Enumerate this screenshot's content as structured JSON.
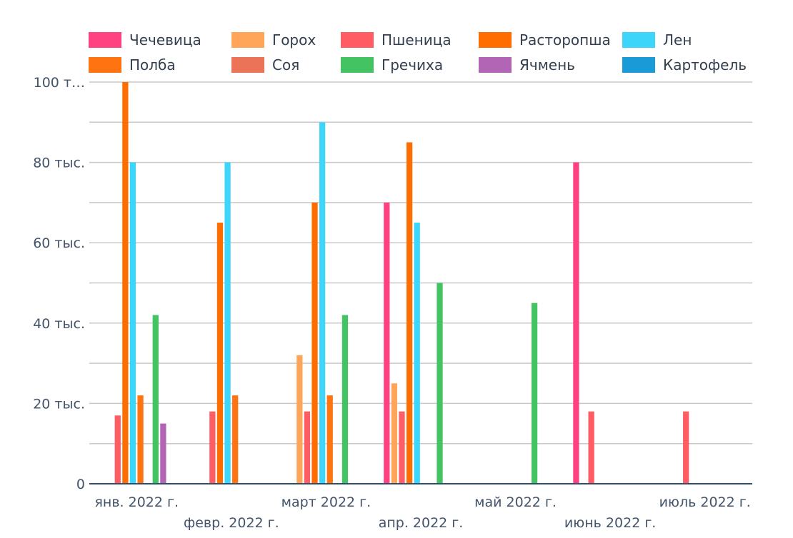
{
  "chart_data": {
    "type": "bar",
    "title": "",
    "xlabel": "",
    "ylabel": "",
    "ylim": [
      0,
      100000
    ],
    "grid": true,
    "legend_position": "top",
    "y_ticks": [
      {
        "value": 0,
        "label": "0"
      },
      {
        "value": 20000,
        "label": "20 тыс."
      },
      {
        "value": 40000,
        "label": "40 тыс."
      },
      {
        "value": 60000,
        "label": "60 тыс."
      },
      {
        "value": 80000,
        "label": "80 тыс."
      },
      {
        "value": 100000,
        "label": "100 т…"
      }
    ],
    "categories": [
      "янв. 2022 г.",
      "февр. 2022 г.",
      "март 2022 г.",
      "апр. 2022 г.",
      "май 2022 г.",
      "июнь 2022 г.",
      "июль 2022 г."
    ],
    "series": [
      {
        "name": "Чечевица",
        "color": "#ff4081",
        "values": [
          null,
          null,
          null,
          70000,
          null,
          80000,
          null
        ]
      },
      {
        "name": "Горох",
        "color": "#ffa55a",
        "values": [
          null,
          null,
          32000,
          25000,
          null,
          null,
          null
        ]
      },
      {
        "name": "Пшеница",
        "color": "#ff5c63",
        "values": [
          17000,
          18000,
          18000,
          18000,
          null,
          18000,
          18000
        ]
      },
      {
        "name": "Расторопша",
        "color": "#ff6d00",
        "values": [
          100000,
          65000,
          70000,
          85000,
          null,
          null,
          null
        ]
      },
      {
        "name": "Лен",
        "color": "#3dd6fa",
        "values": [
          80000,
          80000,
          90000,
          65000,
          null,
          null,
          null
        ]
      },
      {
        "name": "Полба",
        "color": "#ff7411",
        "values": [
          22000,
          22000,
          22000,
          null,
          null,
          null,
          null
        ]
      },
      {
        "name": "Соя",
        "color": "#eb7358",
        "values": [
          null,
          null,
          null,
          null,
          null,
          null,
          null
        ]
      },
      {
        "name": "Гречиха",
        "color": "#44c363",
        "values": [
          42000,
          null,
          42000,
          50000,
          45000,
          null,
          null
        ]
      },
      {
        "name": "Ячмень",
        "color": "#b265b4",
        "values": [
          15000,
          null,
          null,
          null,
          null,
          null,
          null
        ]
      },
      {
        "name": "Картофель",
        "color": "#1a9ad6",
        "values": [
          null,
          null,
          null,
          null,
          null,
          null,
          null
        ]
      }
    ]
  }
}
